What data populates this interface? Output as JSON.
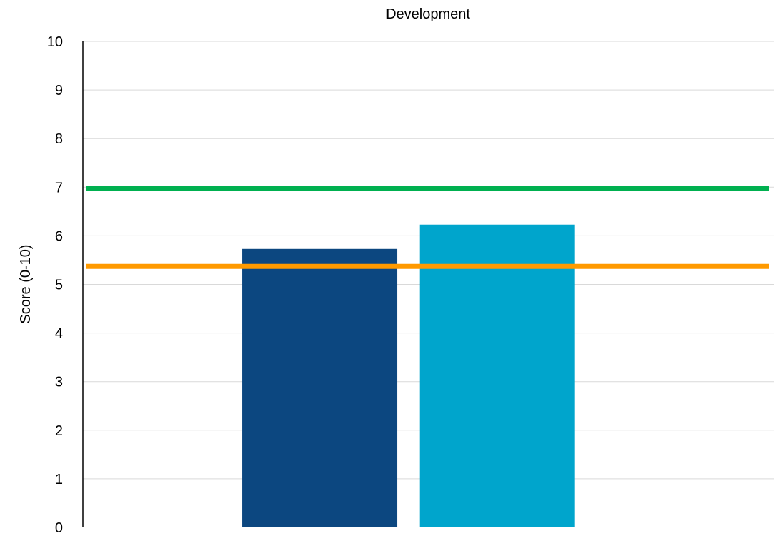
{
  "chart_data": {
    "type": "bar",
    "title": "Development",
    "xlabel": "",
    "ylabel": "Score (0-10)",
    "ylim": [
      0,
      10
    ],
    "y_ticks": [
      "0",
      "1",
      "2",
      "3",
      "4",
      "5",
      "6",
      "7",
      "8",
      "9",
      "10"
    ],
    "grid": true,
    "bars": [
      {
        "value": 5.73,
        "color": "#0c4780"
      },
      {
        "value": 6.23,
        "color": "#00a5cc"
      }
    ],
    "reference_lines": [
      {
        "value": 6.97,
        "color": "#00b050"
      },
      {
        "value": 5.37,
        "color": "#ff9a00"
      }
    ]
  }
}
